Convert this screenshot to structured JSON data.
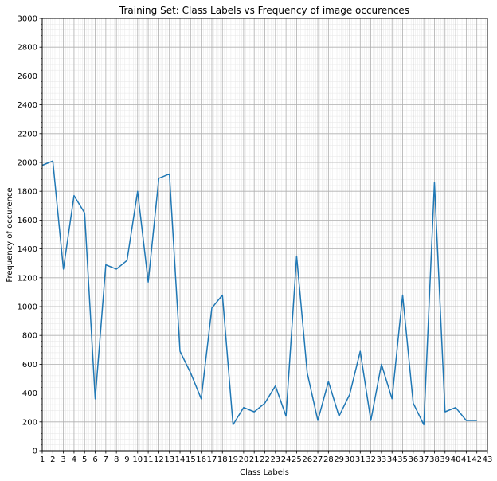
{
  "chart_data": {
    "type": "line",
    "title": "Training Set: Class Labels vs Frequency of image occurences",
    "xlabel": "Class Labels",
    "ylabel": "Frequency of occurence",
    "xlim": [
      1,
      43
    ],
    "ylim": [
      0,
      3000
    ],
    "x_ticks": [
      1,
      2,
      3,
      4,
      5,
      6,
      7,
      8,
      9,
      10,
      11,
      12,
      13,
      14,
      15,
      16,
      17,
      18,
      19,
      20,
      21,
      22,
      23,
      24,
      25,
      26,
      27,
      28,
      29,
      30,
      31,
      32,
      33,
      34,
      35,
      36,
      37,
      38,
      39,
      40,
      41,
      42,
      43
    ],
    "y_ticks": [
      0,
      200,
      400,
      600,
      800,
      1000,
      1200,
      1400,
      1600,
      1800,
      2000,
      2200,
      2400,
      2600,
      2800,
      3000
    ],
    "grid": true,
    "minor_grid": true,
    "line_color": "#1f77b4",
    "series": [
      {
        "x": [
          1,
          2,
          3,
          4,
          5,
          6,
          7,
          8,
          9,
          10,
          11,
          12,
          13,
          14,
          15,
          16,
          17,
          18,
          19,
          20,
          21,
          22,
          23,
          24,
          25,
          26,
          27,
          28,
          29,
          30,
          31,
          32,
          33,
          34,
          35,
          36,
          37,
          38,
          39,
          40,
          41,
          42
        ],
        "values": [
          1980,
          2010,
          1260,
          1770,
          1650,
          360,
          1290,
          1260,
          1320,
          1800,
          1170,
          1890,
          1920,
          690,
          540,
          360,
          990,
          1080,
          180,
          300,
          270,
          330,
          450,
          240,
          1350,
          540,
          210,
          480,
          240,
          390,
          690,
          210,
          600,
          360,
          1080,
          330,
          180,
          1860,
          270,
          300,
          210,
          210
        ]
      }
    ]
  }
}
